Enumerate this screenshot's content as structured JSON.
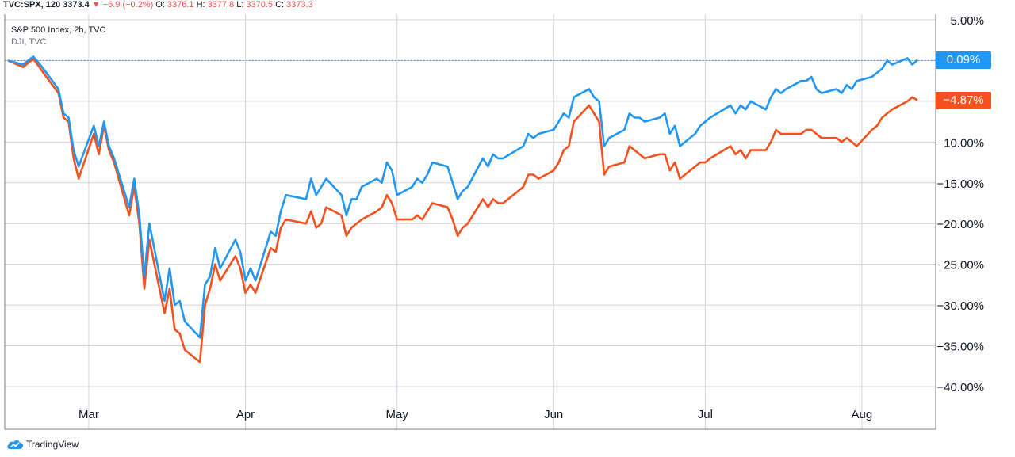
{
  "header": {
    "symbol": "TVC:SPX, 120",
    "last": "3373.4",
    "arrow": "▼",
    "change": "−6.9 (−0.2%)",
    "o_label": "O:",
    "o_value": "3376.1",
    "h_label": "H:",
    "h_value": "3377.8",
    "l_label": "L:",
    "l_value": "3370.5",
    "c_label": "C:",
    "c_value": "3373.3"
  },
  "legend": {
    "series1": "S&P 500 Index, 2h, TVC",
    "series2": "DJI, TVC"
  },
  "badges": {
    "spx_last": "0.09%",
    "dji_last": "−4.87%"
  },
  "footer": {
    "brand": "TradingView"
  },
  "colors": {
    "spx": "#2196f3",
    "dji": "#f4511e",
    "grid": "#e0e3eb",
    "axis_text": "#131722"
  },
  "chart_data": {
    "type": "line",
    "y_axis": {
      "unit": "%",
      "range": [
        -40,
        5
      ],
      "ticks": [
        "5.00%",
        "−10.00%",
        "−15.00%",
        "−20.00%",
        "−25.00%",
        "−30.00%",
        "−35.00%",
        "−40.00%"
      ],
      "tick_values": [
        5,
        -10,
        -15,
        -20,
        -25,
        -30,
        -35,
        -40
      ]
    },
    "x_axis": {
      "range": [
        "2020-02-14",
        "2020-08-12"
      ],
      "ticks": [
        "Mar",
        "Apr",
        "May",
        "Jun",
        "Jul",
        "Aug"
      ],
      "tick_dates": [
        "2020-03-01",
        "2020-04-01",
        "2020-05-01",
        "2020-06-01",
        "2020-07-01",
        "2020-08-01"
      ]
    },
    "grid": true,
    "series": [
      {
        "name": "S&P 500 Index, 2h, TVC",
        "color": "#2196f3",
        "last_value": 0.09,
        "points": [
          [
            "2020-02-14",
            0
          ],
          [
            "2020-02-17",
            -0.5
          ],
          [
            "2020-02-19",
            0.5
          ],
          [
            "2020-02-20",
            -0.2
          ],
          [
            "2020-02-21",
            -1.0
          ],
          [
            "2020-02-24",
            -3.5
          ],
          [
            "2020-02-25",
            -6.5
          ],
          [
            "2020-02-26",
            -7.0
          ],
          [
            "2020-02-27",
            -11.0
          ],
          [
            "2020-02-28",
            -13.0
          ],
          [
            "2020-03-02",
            -8.0
          ],
          [
            "2020-03-03",
            -10.5
          ],
          [
            "2020-03-04",
            -7.5
          ],
          [
            "2020-03-05",
            -10.5
          ],
          [
            "2020-03-06",
            -12.0
          ],
          [
            "2020-03-09",
            -18.0
          ],
          [
            "2020-03-10",
            -14.5
          ],
          [
            "2020-03-11",
            -19.0
          ],
          [
            "2020-03-12",
            -26.5
          ],
          [
            "2020-03-13",
            -20.0
          ],
          [
            "2020-03-16",
            -29.5
          ],
          [
            "2020-03-17",
            -25.5
          ],
          [
            "2020-03-18",
            -30.0
          ],
          [
            "2020-03-19",
            -29.5
          ],
          [
            "2020-03-20",
            -32.0
          ],
          [
            "2020-03-23",
            -34.0
          ],
          [
            "2020-03-24",
            -27.5
          ],
          [
            "2020-03-25",
            -26.5
          ],
          [
            "2020-03-26",
            -23.0
          ],
          [
            "2020-03-27",
            -25.5
          ],
          [
            "2020-03-30",
            -22.0
          ],
          [
            "2020-03-31",
            -23.5
          ],
          [
            "2020-04-01",
            -27.0
          ],
          [
            "2020-04-02",
            -25.5
          ],
          [
            "2020-04-03",
            -27.0
          ],
          [
            "2020-04-06",
            -21.0
          ],
          [
            "2020-04-07",
            -21.5
          ],
          [
            "2020-04-08",
            -18.5
          ],
          [
            "2020-04-09",
            -16.5
          ],
          [
            "2020-04-13",
            -17.0
          ],
          [
            "2020-04-14",
            -14.5
          ],
          [
            "2020-04-15",
            -16.5
          ],
          [
            "2020-04-16",
            -15.5
          ],
          [
            "2020-04-17",
            -14.5
          ],
          [
            "2020-04-20",
            -16.5
          ],
          [
            "2020-04-21",
            -19.0
          ],
          [
            "2020-04-22",
            -17.0
          ],
          [
            "2020-04-23",
            -17.0
          ],
          [
            "2020-04-24",
            -15.5
          ],
          [
            "2020-04-27",
            -14.5
          ],
          [
            "2020-04-28",
            -15.0
          ],
          [
            "2020-04-29",
            -12.5
          ],
          [
            "2020-04-30",
            -13.5
          ],
          [
            "2020-05-01",
            -16.5
          ],
          [
            "2020-05-04",
            -15.5
          ],
          [
            "2020-05-05",
            -14.5
          ],
          [
            "2020-05-06",
            -15.0
          ],
          [
            "2020-05-07",
            -14.0
          ],
          [
            "2020-05-08",
            -12.5
          ],
          [
            "2020-05-11",
            -13.0
          ],
          [
            "2020-05-12",
            -15.0
          ],
          [
            "2020-05-13",
            -17.0
          ],
          [
            "2020-05-14",
            -16.0
          ],
          [
            "2020-05-15",
            -15.5
          ],
          [
            "2020-05-18",
            -12.0
          ],
          [
            "2020-05-19",
            -13.0
          ],
          [
            "2020-05-20",
            -11.5
          ],
          [
            "2020-05-21",
            -12.0
          ],
          [
            "2020-05-22",
            -12.0
          ],
          [
            "2020-05-26",
            -10.5
          ],
          [
            "2020-05-27",
            -9.0
          ],
          [
            "2020-05-28",
            -9.5
          ],
          [
            "2020-05-29",
            -9.0
          ],
          [
            "2020-06-01",
            -8.5
          ],
          [
            "2020-06-02",
            -7.5
          ],
          [
            "2020-06-03",
            -6.5
          ],
          [
            "2020-06-04",
            -7.0
          ],
          [
            "2020-06-05",
            -4.5
          ],
          [
            "2020-06-08",
            -3.5
          ],
          [
            "2020-06-09",
            -4.5
          ],
          [
            "2020-06-10",
            -5.0
          ],
          [
            "2020-06-11",
            -10.5
          ],
          [
            "2020-06-12",
            -9.5
          ],
          [
            "2020-06-15",
            -8.5
          ],
          [
            "2020-06-16",
            -6.5
          ],
          [
            "2020-06-17",
            -7.0
          ],
          [
            "2020-06-18",
            -7.0
          ],
          [
            "2020-06-19",
            -7.5
          ],
          [
            "2020-06-22",
            -7.0
          ],
          [
            "2020-06-23",
            -6.5
          ],
          [
            "2020-06-24",
            -9.0
          ],
          [
            "2020-06-25",
            -8.0
          ],
          [
            "2020-06-26",
            -10.5
          ],
          [
            "2020-06-29",
            -9.0
          ],
          [
            "2020-06-30",
            -8.0
          ],
          [
            "2020-07-01",
            -7.5
          ],
          [
            "2020-07-02",
            -7.0
          ],
          [
            "2020-07-06",
            -5.5
          ],
          [
            "2020-07-07",
            -6.5
          ],
          [
            "2020-07-08",
            -5.5
          ],
          [
            "2020-07-09",
            -6.0
          ],
          [
            "2020-07-10",
            -5.0
          ],
          [
            "2020-07-13",
            -6.0
          ],
          [
            "2020-07-14",
            -4.5
          ],
          [
            "2020-07-15",
            -3.5
          ],
          [
            "2020-07-16",
            -4.0
          ],
          [
            "2020-07-17",
            -3.5
          ],
          [
            "2020-07-20",
            -2.5
          ],
          [
            "2020-07-21",
            -2.5
          ],
          [
            "2020-07-22",
            -2.0
          ],
          [
            "2020-07-23",
            -3.5
          ],
          [
            "2020-07-24",
            -4.0
          ],
          [
            "2020-07-27",
            -3.5
          ],
          [
            "2020-07-28",
            -4.0
          ],
          [
            "2020-07-29",
            -3.0
          ],
          [
            "2020-07-30",
            -3.5
          ],
          [
            "2020-07-31",
            -2.5
          ],
          [
            "2020-08-03",
            -2.0
          ],
          [
            "2020-08-04",
            -1.5
          ],
          [
            "2020-08-05",
            -1.0
          ],
          [
            "2020-08-06",
            0.0
          ],
          [
            "2020-08-07",
            -0.5
          ],
          [
            "2020-08-10",
            0.3
          ],
          [
            "2020-08-11",
            -0.5
          ],
          [
            "2020-08-12",
            0.09
          ]
        ]
      },
      {
        "name": "DJI, TVC",
        "color": "#f4511e",
        "last_value": -4.87,
        "points": [
          [
            "2020-02-14",
            0
          ],
          [
            "2020-02-17",
            -0.8
          ],
          [
            "2020-02-19",
            0.2
          ],
          [
            "2020-02-20",
            -0.6
          ],
          [
            "2020-02-21",
            -1.5
          ],
          [
            "2020-02-24",
            -4.0
          ],
          [
            "2020-02-25",
            -7.0
          ],
          [
            "2020-02-26",
            -7.5
          ],
          [
            "2020-02-27",
            -12.0
          ],
          [
            "2020-02-28",
            -14.5
          ],
          [
            "2020-03-02",
            -9.0
          ],
          [
            "2020-03-03",
            -11.5
          ],
          [
            "2020-03-04",
            -8.0
          ],
          [
            "2020-03-05",
            -11.0
          ],
          [
            "2020-03-06",
            -12.5
          ],
          [
            "2020-03-09",
            -19.0
          ],
          [
            "2020-03-10",
            -15.5
          ],
          [
            "2020-03-11",
            -20.0
          ],
          [
            "2020-03-12",
            -28.0
          ],
          [
            "2020-03-13",
            -22.0
          ],
          [
            "2020-03-16",
            -31.0
          ],
          [
            "2020-03-17",
            -28.0
          ],
          [
            "2020-03-18",
            -33.0
          ],
          [
            "2020-03-19",
            -33.5
          ],
          [
            "2020-03-20",
            -35.5
          ],
          [
            "2020-03-23",
            -37.0
          ],
          [
            "2020-03-24",
            -30.0
          ],
          [
            "2020-03-25",
            -28.0
          ],
          [
            "2020-03-26",
            -25.0
          ],
          [
            "2020-03-27",
            -27.0
          ],
          [
            "2020-03-30",
            -24.0
          ],
          [
            "2020-03-31",
            -25.5
          ],
          [
            "2020-04-01",
            -28.5
          ],
          [
            "2020-04-02",
            -27.5
          ],
          [
            "2020-04-03",
            -28.5
          ],
          [
            "2020-04-06",
            -23.0
          ],
          [
            "2020-04-07",
            -23.5
          ],
          [
            "2020-04-08",
            -20.5
          ],
          [
            "2020-04-09",
            -19.5
          ],
          [
            "2020-04-13",
            -20.0
          ],
          [
            "2020-04-14",
            -18.5
          ],
          [
            "2020-04-15",
            -20.5
          ],
          [
            "2020-04-16",
            -20.0
          ],
          [
            "2020-04-17",
            -18.0
          ],
          [
            "2020-04-20",
            -19.0
          ],
          [
            "2020-04-21",
            -21.5
          ],
          [
            "2020-04-22",
            -20.5
          ],
          [
            "2020-04-23",
            -20.0
          ],
          [
            "2020-04-24",
            -19.5
          ],
          [
            "2020-04-27",
            -18.5
          ],
          [
            "2020-04-28",
            -18.0
          ],
          [
            "2020-04-29",
            -16.5
          ],
          [
            "2020-04-30",
            -17.5
          ],
          [
            "2020-05-01",
            -19.5
          ],
          [
            "2020-05-04",
            -19.5
          ],
          [
            "2020-05-05",
            -19.0
          ],
          [
            "2020-05-06",
            -19.5
          ],
          [
            "2020-05-07",
            -18.5
          ],
          [
            "2020-05-08",
            -17.5
          ],
          [
            "2020-05-11",
            -18.0
          ],
          [
            "2020-05-12",
            -19.5
          ],
          [
            "2020-05-13",
            -21.5
          ],
          [
            "2020-05-14",
            -20.5
          ],
          [
            "2020-05-15",
            -20.0
          ],
          [
            "2020-05-18",
            -17.0
          ],
          [
            "2020-05-19",
            -18.0
          ],
          [
            "2020-05-20",
            -17.0
          ],
          [
            "2020-05-21",
            -17.5
          ],
          [
            "2020-05-22",
            -17.5
          ],
          [
            "2020-05-26",
            -15.5
          ],
          [
            "2020-05-27",
            -14.0
          ],
          [
            "2020-05-28",
            -14.0
          ],
          [
            "2020-05-29",
            -14.5
          ],
          [
            "2020-06-01",
            -13.5
          ],
          [
            "2020-06-02",
            -12.5
          ],
          [
            "2020-06-03",
            -11.0
          ],
          [
            "2020-06-04",
            -10.5
          ],
          [
            "2020-06-05",
            -7.5
          ],
          [
            "2020-06-08",
            -5.5
          ],
          [
            "2020-06-09",
            -6.5
          ],
          [
            "2020-06-10",
            -7.5
          ],
          [
            "2020-06-11",
            -14.0
          ],
          [
            "2020-06-12",
            -13.0
          ],
          [
            "2020-06-15",
            -12.5
          ],
          [
            "2020-06-16",
            -10.5
          ],
          [
            "2020-06-17",
            -11.0
          ],
          [
            "2020-06-18",
            -11.5
          ],
          [
            "2020-06-19",
            -12.0
          ],
          [
            "2020-06-22",
            -11.5
          ],
          [
            "2020-06-23",
            -11.5
          ],
          [
            "2020-06-24",
            -13.5
          ],
          [
            "2020-06-25",
            -12.5
          ],
          [
            "2020-06-26",
            -14.5
          ],
          [
            "2020-06-29",
            -13.0
          ],
          [
            "2020-06-30",
            -12.5
          ],
          [
            "2020-07-01",
            -12.5
          ],
          [
            "2020-07-02",
            -12.0
          ],
          [
            "2020-07-06",
            -10.5
          ],
          [
            "2020-07-07",
            -11.5
          ],
          [
            "2020-07-08",
            -11.0
          ],
          [
            "2020-07-09",
            -12.0
          ],
          [
            "2020-07-10",
            -11.0
          ],
          [
            "2020-07-13",
            -11.0
          ],
          [
            "2020-07-14",
            -10.0
          ],
          [
            "2020-07-15",
            -8.5
          ],
          [
            "2020-07-16",
            -9.0
          ],
          [
            "2020-07-17",
            -9.0
          ],
          [
            "2020-07-20",
            -9.0
          ],
          [
            "2020-07-21",
            -8.5
          ],
          [
            "2020-07-22",
            -8.5
          ],
          [
            "2020-07-23",
            -9.0
          ],
          [
            "2020-07-24",
            -9.5
          ],
          [
            "2020-07-27",
            -9.5
          ],
          [
            "2020-07-28",
            -10.0
          ],
          [
            "2020-07-29",
            -9.5
          ],
          [
            "2020-07-30",
            -10.0
          ],
          [
            "2020-07-31",
            -10.5
          ],
          [
            "2020-08-03",
            -8.5
          ],
          [
            "2020-08-04",
            -8.0
          ],
          [
            "2020-08-05",
            -7.0
          ],
          [
            "2020-08-06",
            -6.5
          ],
          [
            "2020-08-07",
            -6.0
          ],
          [
            "2020-08-10",
            -5.0
          ],
          [
            "2020-08-11",
            -4.5
          ],
          [
            "2020-08-12",
            -4.87
          ]
        ]
      }
    ],
    "reference_line": {
      "value": 0,
      "style": "dotted",
      "color": "#2196f3"
    }
  }
}
